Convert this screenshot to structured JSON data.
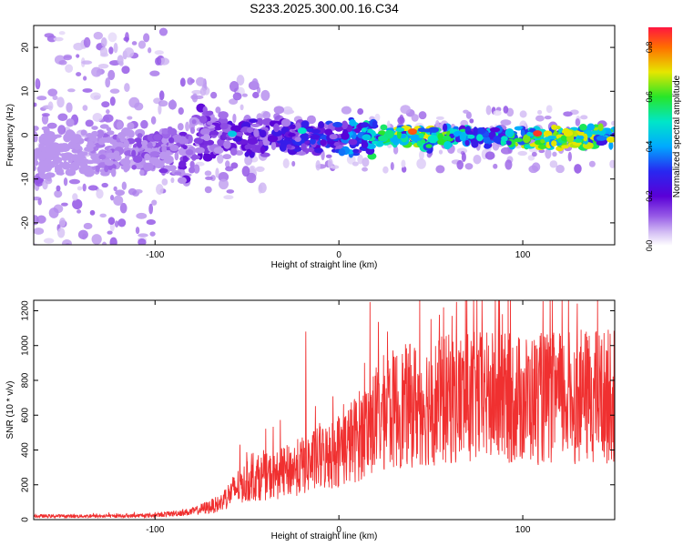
{
  "title": "S233.2025.300.00.16.C34",
  "colors": {
    "series": "#f03030",
    "spectrogram_ridge": "#3a00d0",
    "background": "#ffffff"
  },
  "chart_data": [
    {
      "type": "heatmap",
      "xlabel": "Height of straight line (km)",
      "ylabel": "Frequency (Hz)",
      "xlim": [
        -166,
        150
      ],
      "ylim": [
        -25,
        25
      ],
      "xticks": [
        -100,
        0,
        100
      ],
      "yticks": [
        -20,
        -10,
        0,
        10,
        20
      ],
      "colorbar": {
        "label": "Normalized spectral amplitude",
        "range": [
          0.0,
          0.88
        ],
        "ticks": [
          0.0,
          0.2,
          0.4,
          0.6,
          0.8
        ],
        "colormap": "rainbow (white → violet → blue → cyan → green → yellow → red → magenta)"
      },
      "description_points": [
        {
          "x": -140,
          "y": -6,
          "amp": 0.08
        },
        {
          "x": -90,
          "y": -4,
          "amp": 0.15
        },
        {
          "x": -60,
          "y": 0,
          "amp": 0.2
        },
        {
          "x": -30,
          "y": -1,
          "amp": 0.25
        },
        {
          "x": 0,
          "y": 0,
          "amp": 0.3
        },
        {
          "x": 40,
          "y": 1,
          "amp": 0.75
        },
        {
          "x": 80,
          "y": -1,
          "amp": 0.4
        },
        {
          "x": 110,
          "y": 0,
          "amp": 0.78
        },
        {
          "x": 148,
          "y": -1,
          "amp": 0.6
        }
      ]
    },
    {
      "type": "line",
      "xlabel": "Height of straight line (km)",
      "ylabel": "SNR (10 * v/v)",
      "xlim": [
        -166,
        150
      ],
      "ylim": [
        0,
        1260
      ],
      "xticks": [
        -100,
        0,
        100
      ],
      "yticks": [
        0,
        200,
        400,
        600,
        800,
        1000,
        1200
      ],
      "series": [
        {
          "envelope_x": [
            -166,
            -120,
            -100,
            -80,
            -65,
            -55,
            -45,
            -35,
            -25,
            -15,
            -5,
            5,
            15,
            25,
            40,
            60,
            80,
            100,
            120,
            150
          ],
          "envelope_mean": [
            20,
            20,
            25,
            45,
            90,
            190,
            240,
            250,
            290,
            330,
            370,
            430,
            520,
            620,
            660,
            690,
            700,
            690,
            700,
            710
          ],
          "peaks": [
            {
              "x": 17,
              "y": 1250
            },
            {
              "x": 111,
              "y": 1255
            },
            {
              "x": 57,
              "y": 1220
            },
            {
              "x": -18,
              "y": 1080
            }
          ]
        }
      ]
    }
  ]
}
